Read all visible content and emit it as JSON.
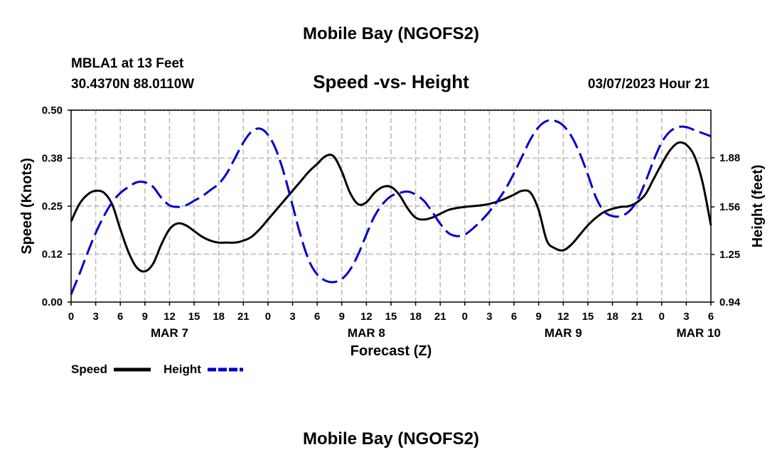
{
  "header": {
    "title_top": "Mobile Bay (NGOFS2)",
    "station": "MBLA1 at 13 Feet",
    "coords": "30.4370N  88.0110W",
    "datetime": "03/07/2023 Hour 21",
    "title_bottom": "Mobile Bay (NGOFS2)"
  },
  "chart_data": {
    "type": "line",
    "title": "Speed -vs- Height",
    "xlabel": "Forecast (Z)",
    "ylabel_left": "Speed (Knots)",
    "ylabel_right": "Height (feet)",
    "x_range_hours": [
      0,
      78
    ],
    "x_ticks": [
      "0",
      "3",
      "6",
      "9",
      "12",
      "15",
      "18",
      "21",
      "0",
      "3",
      "6",
      "9",
      "12",
      "15",
      "18",
      "21",
      "0",
      "3",
      "6",
      "9",
      "12",
      "15",
      "18",
      "21",
      "0",
      "3",
      "6"
    ],
    "date_labels": [
      {
        "label": "MAR 7",
        "hour": 12
      },
      {
        "label": "MAR 8",
        "hour": 36
      },
      {
        "label": "MAR 9",
        "hour": 60
      },
      {
        "label": "MAR 10",
        "hour": 76.5
      }
    ],
    "y_left": {
      "range": [
        0,
        0.5
      ],
      "ticks": [
        "0.00",
        "0.12",
        "0.25",
        "0.38",
        "0.50"
      ]
    },
    "y_right": {
      "range": [
        0.94,
        2.19
      ],
      "ticks": [
        "0.94",
        "1.25",
        "1.56",
        "1.88"
      ],
      "tick_values": [
        0.94,
        1.25,
        1.56,
        1.88
      ]
    },
    "grid": true,
    "legend": [
      {
        "name": "Speed",
        "color": "#000000",
        "style": "solid"
      },
      {
        "name": "Height",
        "color": "#0000cc",
        "style": "dashed"
      }
    ],
    "series": [
      {
        "name": "Speed",
        "axis": "left",
        "color": "#000000",
        "style": "solid",
        "points": [
          [
            0,
            0.21
          ],
          [
            1,
            0.255
          ],
          [
            2,
            0.28
          ],
          [
            3,
            0.29
          ],
          [
            4,
            0.285
          ],
          [
            5,
            0.255
          ],
          [
            6,
            0.19
          ],
          [
            7,
            0.13
          ],
          [
            8,
            0.09
          ],
          [
            9,
            0.08
          ],
          [
            10,
            0.1
          ],
          [
            11,
            0.15
          ],
          [
            12,
            0.19
          ],
          [
            13,
            0.205
          ],
          [
            14,
            0.2
          ],
          [
            15,
            0.185
          ],
          [
            16,
            0.17
          ],
          [
            17,
            0.16
          ],
          [
            18,
            0.155
          ],
          [
            19,
            0.155
          ],
          [
            20,
            0.155
          ],
          [
            21,
            0.16
          ],
          [
            22,
            0.17
          ],
          [
            23,
            0.19
          ],
          [
            24,
            0.215
          ],
          [
            25,
            0.24
          ],
          [
            26,
            0.265
          ],
          [
            27,
            0.29
          ],
          [
            28,
            0.315
          ],
          [
            29,
            0.34
          ],
          [
            30,
            0.36
          ],
          [
            31,
            0.38
          ],
          [
            32,
            0.38
          ],
          [
            33,
            0.34
          ],
          [
            34,
            0.285
          ],
          [
            35,
            0.255
          ],
          [
            36,
            0.26
          ],
          [
            37,
            0.285
          ],
          [
            38,
            0.3
          ],
          [
            39,
            0.3
          ],
          [
            40,
            0.28
          ],
          [
            41,
            0.245
          ],
          [
            42,
            0.22
          ],
          [
            43,
            0.215
          ],
          [
            44,
            0.22
          ],
          [
            45,
            0.23
          ],
          [
            46,
            0.24
          ],
          [
            47,
            0.245
          ],
          [
            48,
            0.248
          ],
          [
            49,
            0.25
          ],
          [
            50,
            0.252
          ],
          [
            51,
            0.256
          ],
          [
            52,
            0.262
          ],
          [
            53,
            0.27
          ],
          [
            54,
            0.28
          ],
          [
            55,
            0.29
          ],
          [
            56,
            0.285
          ],
          [
            57,
            0.24
          ],
          [
            58,
            0.16
          ],
          [
            59,
            0.14
          ],
          [
            60,
            0.135
          ],
          [
            61,
            0.15
          ],
          [
            62,
            0.175
          ],
          [
            63,
            0.2
          ],
          [
            64,
            0.22
          ],
          [
            65,
            0.235
          ],
          [
            66,
            0.243
          ],
          [
            67,
            0.248
          ],
          [
            68,
            0.25
          ],
          [
            69,
            0.26
          ],
          [
            70,
            0.28
          ],
          [
            71,
            0.32
          ],
          [
            72,
            0.36
          ],
          [
            73,
            0.395
          ],
          [
            74,
            0.415
          ],
          [
            75,
            0.41
          ],
          [
            76,
            0.38
          ],
          [
            77,
            0.31
          ],
          [
            78,
            0.2
          ]
        ]
      },
      {
        "name": "Height",
        "axis": "right",
        "color": "#0000cc",
        "style": "dashed",
        "points": [
          [
            0,
            0.99
          ],
          [
            1,
            1.12
          ],
          [
            2,
            1.26
          ],
          [
            3,
            1.39
          ],
          [
            4,
            1.5
          ],
          [
            5,
            1.59
          ],
          [
            6,
            1.65
          ],
          [
            7,
            1.69
          ],
          [
            8,
            1.72
          ],
          [
            9,
            1.72
          ],
          [
            10,
            1.69
          ],
          [
            11,
            1.62
          ],
          [
            12,
            1.57
          ],
          [
            13,
            1.56
          ],
          [
            14,
            1.57
          ],
          [
            15,
            1.6
          ],
          [
            16,
            1.63
          ],
          [
            17,
            1.67
          ],
          [
            18,
            1.71
          ],
          [
            19,
            1.78
          ],
          [
            20,
            1.88
          ],
          [
            21,
            1.98
          ],
          [
            22,
            2.05
          ],
          [
            23,
            2.07
          ],
          [
            24,
            2.03
          ],
          [
            25,
            1.93
          ],
          [
            26,
            1.77
          ],
          [
            27,
            1.57
          ],
          [
            28,
            1.37
          ],
          [
            29,
            1.21
          ],
          [
            30,
            1.12
          ],
          [
            31,
            1.08
          ],
          [
            32,
            1.07
          ],
          [
            33,
            1.09
          ],
          [
            34,
            1.15
          ],
          [
            35,
            1.25
          ],
          [
            36,
            1.38
          ],
          [
            37,
            1.5
          ],
          [
            38,
            1.58
          ],
          [
            39,
            1.63
          ],
          [
            40,
            1.65
          ],
          [
            41,
            1.66
          ],
          [
            42,
            1.64
          ],
          [
            43,
            1.6
          ],
          [
            44,
            1.53
          ],
          [
            45,
            1.45
          ],
          [
            46,
            1.39
          ],
          [
            47,
            1.37
          ],
          [
            48,
            1.38
          ],
          [
            49,
            1.42
          ],
          [
            50,
            1.47
          ],
          [
            51,
            1.53
          ],
          [
            52,
            1.6
          ],
          [
            53,
            1.68
          ],
          [
            54,
            1.78
          ],
          [
            55,
            1.89
          ],
          [
            56,
            2.0
          ],
          [
            57,
            2.08
          ],
          [
            58,
            2.12
          ],
          [
            59,
            2.12
          ],
          [
            60,
            2.09
          ],
          [
            61,
            2.02
          ],
          [
            62,
            1.91
          ],
          [
            63,
            1.77
          ],
          [
            64,
            1.62
          ],
          [
            65,
            1.53
          ],
          [
            66,
            1.5
          ],
          [
            67,
            1.5
          ],
          [
            68,
            1.53
          ],
          [
            69,
            1.6
          ],
          [
            70,
            1.72
          ],
          [
            71,
            1.86
          ],
          [
            72,
            1.98
          ],
          [
            73,
            2.05
          ],
          [
            74,
            2.08
          ],
          [
            75,
            2.08
          ],
          [
            76,
            2.06
          ],
          [
            77,
            2.04
          ],
          [
            78,
            2.02
          ]
        ]
      }
    ]
  }
}
